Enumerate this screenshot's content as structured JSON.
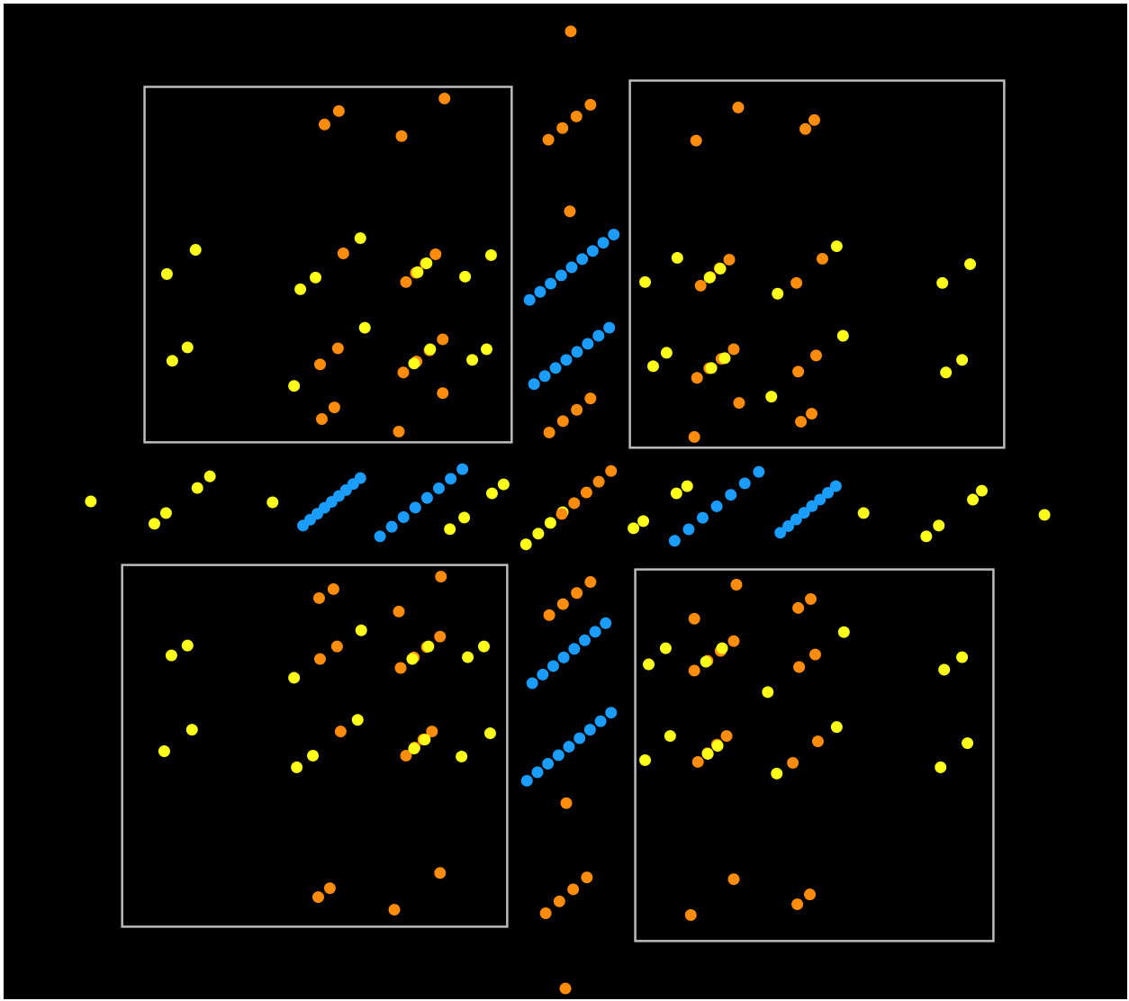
{
  "colors": {
    "background": "#000000",
    "frame": "#bdbdbd",
    "yellow": "#ffff1a",
    "orange": "#ff8c0a",
    "blue": "#1a9dff"
  },
  "icon": "diffraction-pattern-dots"
}
